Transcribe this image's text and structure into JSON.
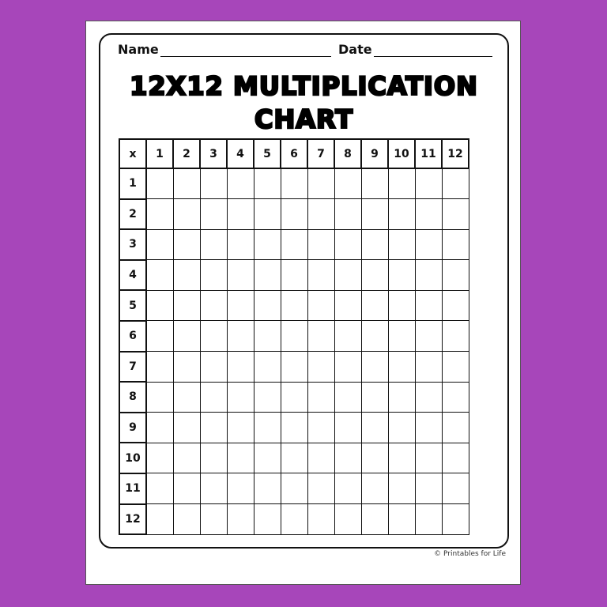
{
  "header": {
    "name_label": "Name",
    "date_label": "Date"
  },
  "title": {
    "line1": "12X12 MULTIPLICATION",
    "line2": "CHART"
  },
  "table": {
    "corner": "x",
    "columns": [
      "1",
      "2",
      "3",
      "4",
      "5",
      "6",
      "7",
      "8",
      "9",
      "10",
      "11",
      "12"
    ],
    "rows": [
      "1",
      "2",
      "3",
      "4",
      "5",
      "6",
      "7",
      "8",
      "9",
      "10",
      "11",
      "12"
    ]
  },
  "footer": {
    "copyright": "© Printables for Life"
  },
  "colors": {
    "background": "#a746ba",
    "page": "#ffffff",
    "ink": "#111111"
  }
}
